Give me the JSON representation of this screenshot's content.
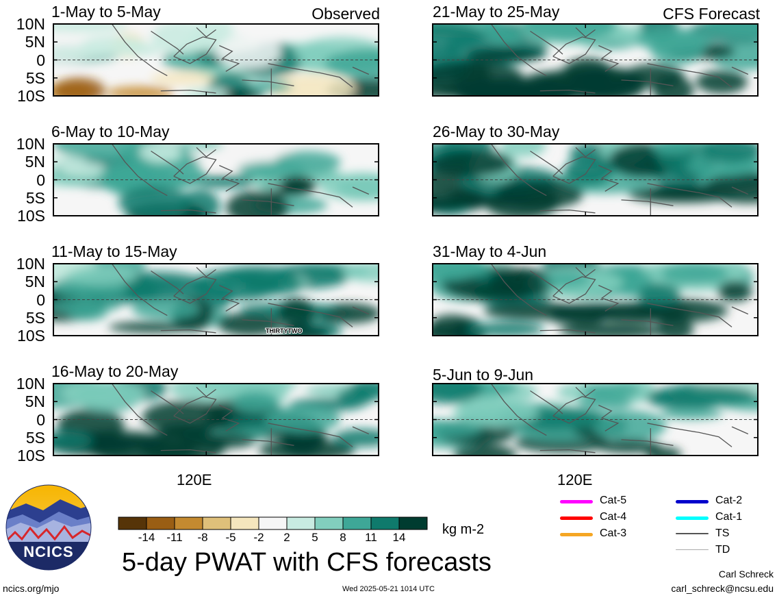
{
  "chart_data": [
    {
      "type": "heatmap",
      "title": "1-May to 5-May",
      "tag": "Observed",
      "lat_ticks": [
        "10N",
        "5N",
        "0",
        "5S",
        "10S"
      ],
      "ylim": [
        -10,
        10
      ]
    },
    {
      "type": "heatmap",
      "title": "6-May to 10-May",
      "tag": "",
      "lat_ticks": [
        "10N",
        "5N",
        "0",
        "5S",
        "10S"
      ],
      "ylim": [
        -10,
        10
      ]
    },
    {
      "type": "heatmap",
      "title": "11-May to 15-May",
      "tag": "",
      "lat_ticks": [
        "10N",
        "5N",
        "0",
        "5S",
        "10S"
      ],
      "ylim": [
        -10,
        10
      ],
      "annotation": "THIRTYTWO"
    },
    {
      "type": "heatmap",
      "title": "16-May to 20-May",
      "tag": "",
      "lat_ticks": [
        "10N",
        "5N",
        "0",
        "5S",
        "10S"
      ],
      "ylim": [
        -10,
        10
      ],
      "lon_tick": "120E"
    },
    {
      "type": "heatmap",
      "title": "21-May to 25-May",
      "tag": "CFS Forecast"
    },
    {
      "type": "heatmap",
      "title": "26-May to 30-May",
      "tag": ""
    },
    {
      "type": "heatmap",
      "title": "31-May to 4-Jun",
      "tag": ""
    },
    {
      "type": "heatmap",
      "title": "5-Jun to 9-Jun",
      "tag": "",
      "lon_tick": "120E"
    }
  ],
  "colorbar": {
    "ticks": [
      "-14",
      "-11",
      "-8",
      "-5",
      "-2",
      "2",
      "5",
      "8",
      "11",
      "14"
    ],
    "colors": [
      "#563408",
      "#9a5e14",
      "#c48a30",
      "#dfc07a",
      "#f5e6bd",
      "#f6f6f6",
      "#c8ebe1",
      "#82cfbe",
      "#3ea797",
      "#0f7a6c",
      "#003c30"
    ],
    "unit": "kg m-2"
  },
  "storm_legend": {
    "left": [
      {
        "label": "Cat-5",
        "color": "#ff00ff"
      },
      {
        "label": "Cat-4",
        "color": "#ff0000"
      },
      {
        "label": "Cat-3",
        "color": "#f5a623"
      }
    ],
    "right": [
      {
        "label": "Cat-2",
        "color": "#0000cc"
      },
      {
        "label": "Cat-1",
        "color": "#00ffff"
      },
      {
        "label": "TS",
        "color": "#555555"
      },
      {
        "label": "TD",
        "color": "#aaaaaa"
      }
    ]
  },
  "footer": {
    "main_title": "5-day PWAT with CFS forecasts",
    "logo_text": "NCICS",
    "site": "ncics.org/mjo",
    "timestamp": "Wed 2025-05-21 1014 UTC",
    "author": "Carl Schreck",
    "email": "carl_schreck@ncsu.edu"
  }
}
